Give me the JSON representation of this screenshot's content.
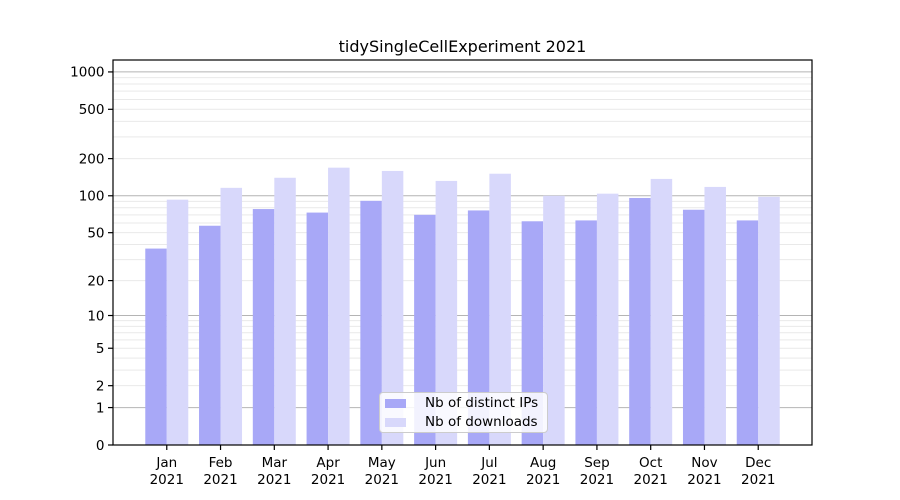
{
  "chart_data": {
    "type": "bar",
    "title": "tidySingleCellExperiment 2021",
    "xlabel": "",
    "ylabel": "",
    "categories": [
      "Jan 2021",
      "Feb 2021",
      "Mar 2021",
      "Apr 2021",
      "May 2021",
      "Jun 2021",
      "Jul 2021",
      "Aug 2021",
      "Sep 2021",
      "Oct 2021",
      "Nov 2021",
      "Dec 2021"
    ],
    "series": [
      {
        "name": "Nb of distinct IPs",
        "color": "#a8a8f7",
        "values": [
          37,
          57,
          78,
          73,
          91,
          70,
          76,
          62,
          63,
          96,
          77,
          63
        ]
      },
      {
        "name": "Nb of downloads",
        "color": "#d8d8fb",
        "values": [
          93,
          116,
          140,
          169,
          159,
          132,
          151,
          100,
          104,
          137,
          118,
          98
        ]
      }
    ],
    "yscale": "log1p",
    "yticks": [
      0,
      1,
      2,
      5,
      10,
      20,
      50,
      100,
      200,
      500,
      1000
    ],
    "ylim": [
      0,
      1250
    ],
    "legend_position": "lower center inside plot",
    "grid": {
      "major_values": [
        1,
        10,
        100,
        1000
      ],
      "major_color": "#b4b4b4",
      "minor_color": "#e9e9e9"
    },
    "axis_color": "#000000",
    "background": "#ffffff"
  }
}
